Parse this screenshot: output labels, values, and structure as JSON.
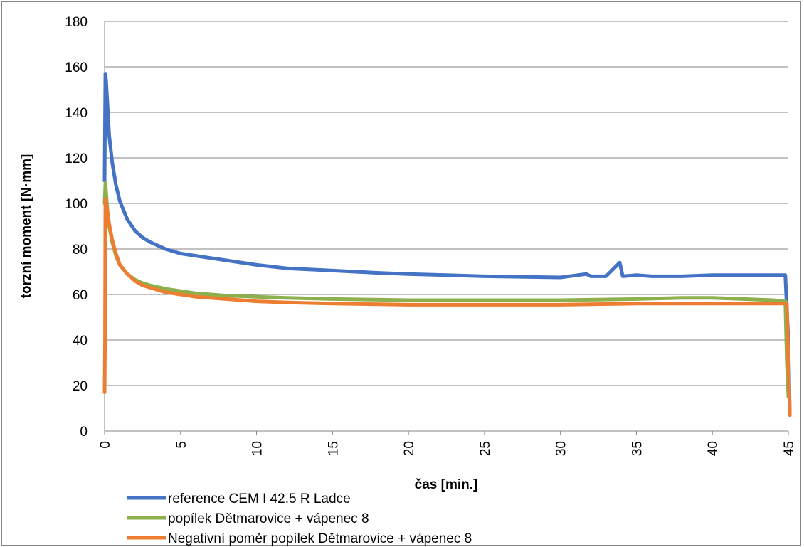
{
  "chart_data": {
    "type": "line",
    "xlabel": "čas [min.]",
    "ylabel": "torzní moment [N·mm]",
    "xlim": [
      0,
      45
    ],
    "ylim": [
      0,
      180
    ],
    "x_ticks": [
      0,
      5,
      10,
      15,
      20,
      25,
      30,
      35,
      40,
      45
    ],
    "y_ticks": [
      0,
      20,
      40,
      60,
      80,
      100,
      120,
      140,
      160,
      180
    ],
    "grid": "horizontal",
    "legend_position": "bottom",
    "series": [
      {
        "name": "reference CEM I 42.5 R Ladce",
        "color": "#4472C4",
        "x": [
          0,
          0.05,
          0.1,
          0.2,
          0.3,
          0.5,
          0.75,
          1,
          1.5,
          2,
          2.5,
          3,
          4,
          5,
          6,
          7,
          8,
          10,
          12,
          15,
          18,
          20,
          25,
          30,
          31.7,
          32,
          33,
          33.9,
          34.1,
          35,
          36,
          38,
          40,
          42,
          44,
          44.8,
          45,
          45.1
        ],
        "y": [
          110,
          157,
          154,
          142,
          130,
          118,
          108,
          101,
          93,
          88,
          85,
          83,
          80,
          78,
          77,
          76,
          75,
          73,
          71.5,
          70.5,
          69.5,
          69,
          68,
          67.5,
          69,
          68,
          68,
          74,
          68,
          68.5,
          68,
          68,
          68.5,
          68.5,
          68.5,
          68.5,
          40,
          7
        ]
      },
      {
        "name": "popílek Dětmarovice + vápenec 8",
        "color": "#8DB04D",
        "x": [
          0,
          0.05,
          0.1,
          0.2,
          0.3,
          0.5,
          0.75,
          1,
          1.5,
          2,
          2.5,
          3,
          4,
          5,
          6,
          8,
          10,
          12,
          15,
          20,
          25,
          30,
          35,
          38,
          40,
          42,
          44,
          44.8,
          44.9,
          45
        ],
        "y": [
          100,
          109,
          105,
          96,
          90,
          83,
          77,
          73,
          69,
          66.5,
          65,
          64,
          62.5,
          61.5,
          60.5,
          59.5,
          59,
          58.5,
          58,
          57.5,
          57.5,
          57.5,
          58,
          58.5,
          58.5,
          58,
          57.5,
          57,
          30,
          15
        ]
      },
      {
        "name": "Negativní poměr popílek Dětmarovice + vápenec 8",
        "color": "#ED7D31",
        "x": [
          0,
          0.03,
          0.05,
          0.1,
          0.2,
          0.3,
          0.5,
          0.75,
          1,
          1.5,
          2,
          2.5,
          3,
          4,
          5,
          6,
          8,
          10,
          12,
          15,
          20,
          25,
          30,
          35,
          40,
          44,
          44.9,
          45,
          45.1
        ],
        "y": [
          17,
          40,
          102,
          100,
          96,
          91,
          84,
          78,
          73,
          69,
          66,
          64,
          63,
          61,
          60,
          59,
          58,
          57,
          56.5,
          56,
          55.5,
          55.5,
          55.5,
          56,
          56,
          56,
          56,
          30,
          7
        ]
      }
    ]
  }
}
